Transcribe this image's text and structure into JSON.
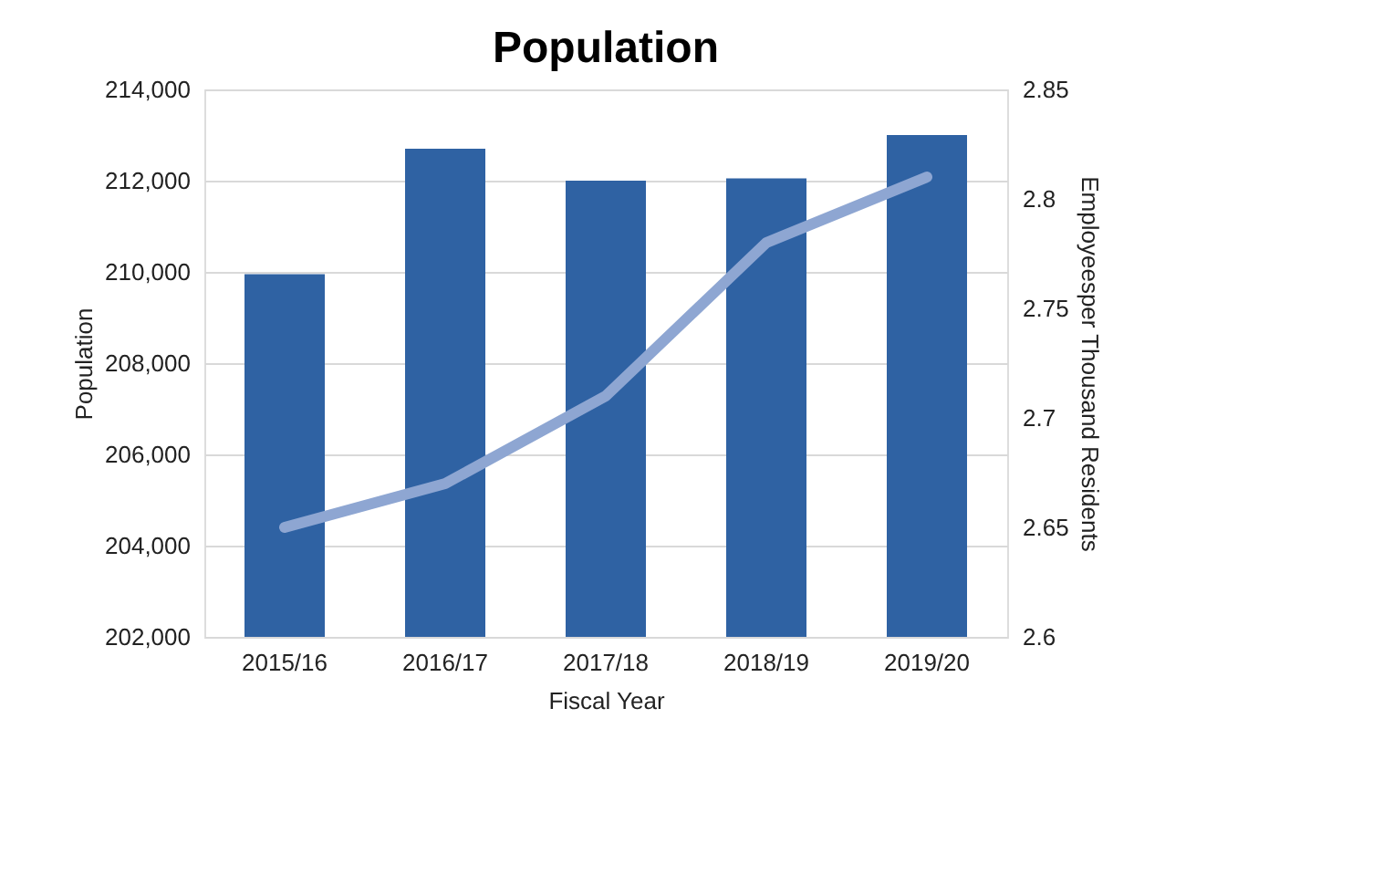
{
  "chart_data": {
    "type": "bar",
    "title": "Population",
    "xlabel": "Fiscal Year",
    "ylabel": "Population",
    "y2label": "Employeesper Thousand Residents",
    "categories": [
      "2015/16",
      "2016/17",
      "2017/18",
      "2018/19",
      "2019/20"
    ],
    "series": [
      {
        "color": "#2f62a3",
        "values": [
          209950,
          212700,
          212000,
          212050,
          213000
        ]
      },
      {
        "type": "line",
        "axis": "y2",
        "color": "#8ea6d2",
        "values": [
          2.65,
          2.67,
          2.71,
          2.78,
          2.81
        ]
      }
    ],
    "ylim": [
      202000,
      214000
    ],
    "yticks": [
      {
        "value": 202000,
        "label": "202,000"
      },
      {
        "value": 204000,
        "label": "204,000"
      },
      {
        "value": 206000,
        "label": "206,000"
      },
      {
        "value": 208000,
        "label": "208,000"
      },
      {
        "value": 210000,
        "label": "210,000"
      },
      {
        "value": 212000,
        "label": "212,000"
      },
      {
        "value": 214000,
        "label": "214,000"
      }
    ],
    "y2lim": [
      2.6,
      2.85
    ],
    "y2ticks": [
      2.6,
      2.65,
      2.7,
      2.75,
      2.8,
      2.85
    ],
    "grid": "y"
  }
}
